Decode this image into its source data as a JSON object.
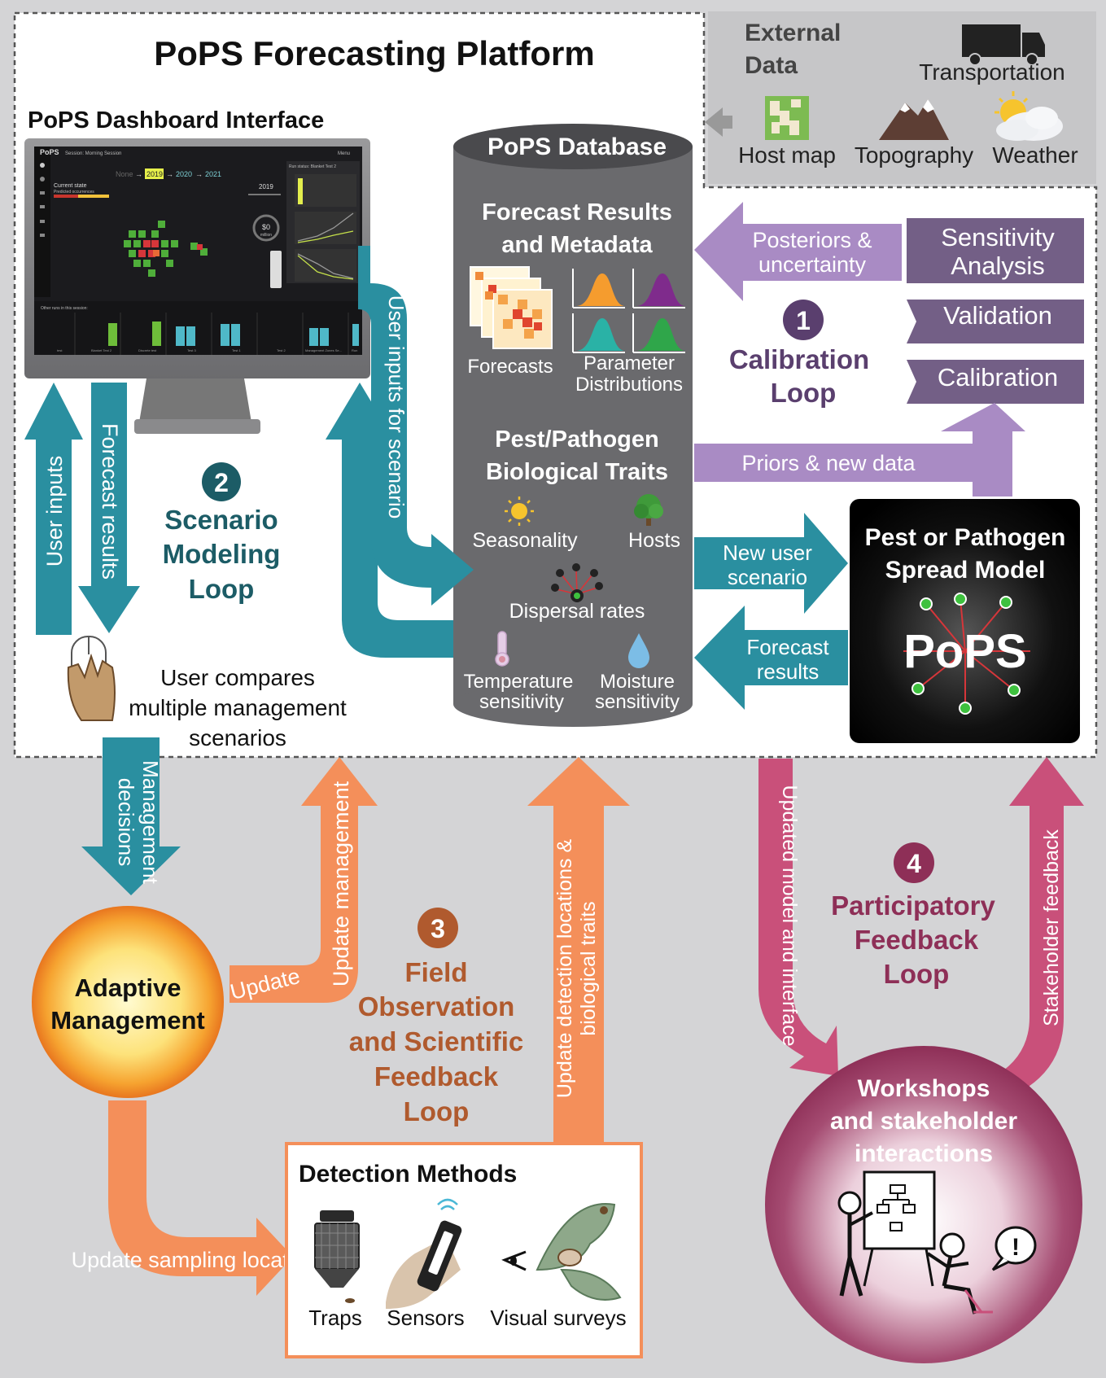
{
  "platform_title": "PoPS Forecasting Platform",
  "dashboard": {
    "title": "PoPS Dashboard Interface",
    "logo": "PoPS",
    "session": "Session: Morning Session",
    "menu": "Menu",
    "years": [
      "None",
      "2019",
      "2020",
      "2021"
    ],
    "current_state": "Current state",
    "predicted": "Predicted occurrences",
    "year_label": "2019",
    "money_value": "$0",
    "money_unit": "million",
    "money_caption": "spent on management",
    "run_status": "Run status: Blanket Test 2",
    "other_runs": "Other runs in this session:",
    "run_names": [
      "test",
      "Blanket Test 2",
      "Discrete test",
      "Test 3",
      "Test 1",
      "Test 2",
      "Management Zones Se...",
      "Run"
    ]
  },
  "external": {
    "title": "External Data",
    "transportation": "Transportation",
    "host_map": "Host map",
    "topography": "Topography",
    "weather": "Weather"
  },
  "database": {
    "title": "PoPS Database",
    "forecast_title_1": "Forecast Results",
    "forecast_title_2": "and Metadata",
    "forecasts": "Forecasts",
    "param_1": "Parameter",
    "param_2": "Distributions",
    "traits_1": "Pest/Pathogen",
    "traits_2": "Biological Traits",
    "seasonality": "Seasonality",
    "hosts": "Hosts",
    "dispersal": "Dispersal rates",
    "temp_1": "Temperature",
    "temp_2": "sensitivity",
    "moist_1": "Moisture",
    "moist_2": "sensitivity"
  },
  "calibration": {
    "number": "1",
    "title_1": "Calibration",
    "title_2": "Loop",
    "posteriors_1": "Posteriors &",
    "posteriors_2": "uncertainty",
    "sensitivity_1": "Sensitivity",
    "sensitivity_2": "Analysis",
    "validation": "Validation",
    "calibration": "Calibration",
    "priors": "Priors & new data"
  },
  "model": {
    "title_1": "Pest or Pathogen",
    "title_2": "Spread Model",
    "logo": "PoPS",
    "new_scenario_1": "New user",
    "new_scenario_2": "scenario",
    "forecast_results_1": "Forecast",
    "forecast_results_2": "results"
  },
  "scenario": {
    "number": "2",
    "title_1": "Scenario",
    "title_2": "Modeling",
    "title_3": "Loop",
    "user_inputs": "User inputs",
    "forecast_results": "Forecast results",
    "forecast_results_2": "Forecast results",
    "user_inputs_scenario": "User inputs for scenario",
    "compare_1": "User compares",
    "compare_2": "multiple management",
    "compare_3": "scenarios"
  },
  "field": {
    "number": "3",
    "title_1": "Field",
    "title_2": "Observation",
    "title_3": "and Scientific",
    "title_4": "Feedback",
    "title_5": "Loop",
    "management_decisions_1": "Management",
    "management_decisions_2": "decisions",
    "update_management": "Update management",
    "update_sampling": "Update sampling locations",
    "update_detection_1": "Update detection locations &",
    "update_detection_2": "biological traits"
  },
  "adaptive": {
    "line1": "Adaptive",
    "line2": "Management"
  },
  "detection": {
    "title": "Detection Methods",
    "traps": "Traps",
    "sensors": "Sensors",
    "visual": "Visual surveys"
  },
  "participatory": {
    "number": "4",
    "title_1": "Participatory",
    "title_2": "Feedback",
    "title_3": "Loop",
    "updated_model": "Updated model and interface",
    "stakeholder_feedback": "Stakeholder feedback",
    "workshops_1": "Workshops",
    "workshops_2": "and stakeholder",
    "workshops_3": "interactions"
  },
  "colors": {
    "teal": "#2a8fa0",
    "purple": "#a98bc4",
    "dark_purple": "#735f86",
    "orange": "#f48f5a",
    "magenta": "#c9507a",
    "db_grey": "#6a6a6d"
  }
}
